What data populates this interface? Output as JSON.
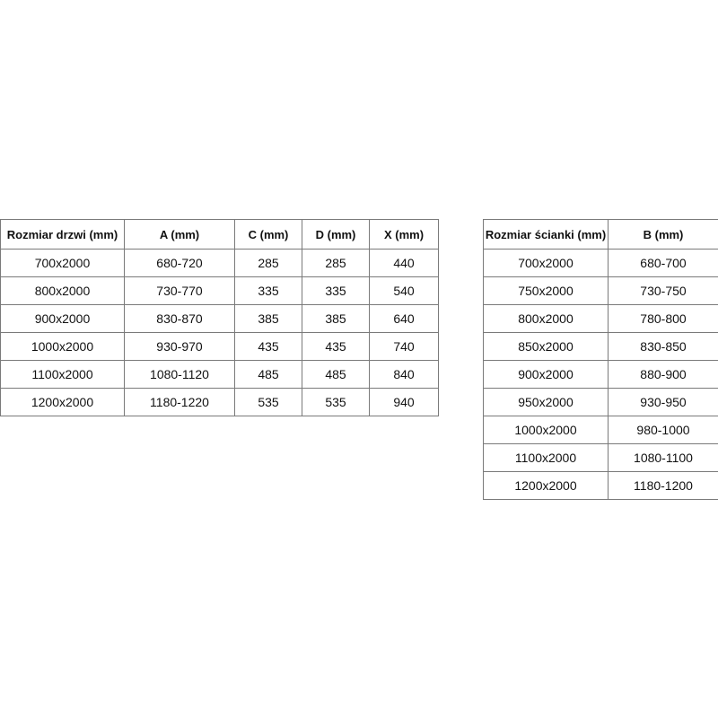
{
  "door_table": {
    "headers": [
      "Rozmiar drzwi (mm)",
      "A (mm)",
      "C (mm)",
      "D (mm)",
      "X (mm)"
    ],
    "rows": [
      [
        "700x2000",
        "680-720",
        "285",
        "285",
        "440"
      ],
      [
        "800x2000",
        "730-770",
        "335",
        "335",
        "540"
      ],
      [
        "900x2000",
        "830-870",
        "385",
        "385",
        "640"
      ],
      [
        "1000x2000",
        "930-970",
        "435",
        "435",
        "740"
      ],
      [
        "1100x2000",
        "1080-1120",
        "485",
        "485",
        "840"
      ],
      [
        "1200x2000",
        "1180-1220",
        "535",
        "535",
        "940"
      ]
    ]
  },
  "wall_table": {
    "headers": [
      "Rozmiar ścianki (mm)",
      "B (mm)"
    ],
    "rows": [
      [
        "700x2000",
        "680-700"
      ],
      [
        "750x2000",
        "730-750"
      ],
      [
        "800x2000",
        "780-800"
      ],
      [
        "850x2000",
        "830-850"
      ],
      [
        "900x2000",
        "880-900"
      ],
      [
        "950x2000",
        "930-950"
      ],
      [
        "1000x2000",
        "980-1000"
      ],
      [
        "1100x2000",
        "1080-1100"
      ],
      [
        "1200x2000",
        "1180-1200"
      ]
    ]
  }
}
